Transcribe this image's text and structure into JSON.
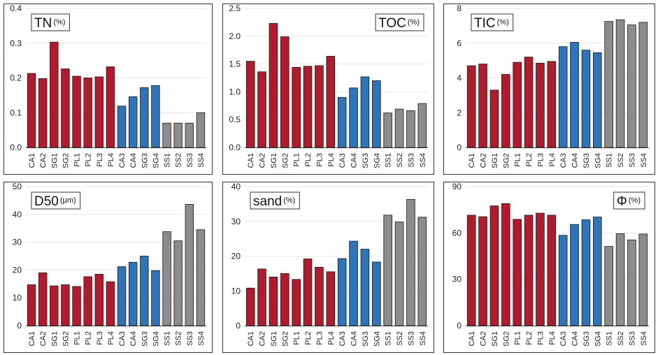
{
  "chart_data": [
    {
      "type": "bar",
      "title": "TN",
      "unit": "(%)",
      "categories": [
        "CA1",
        "CA2",
        "SG1",
        "SG2",
        "PL1",
        "PL2",
        "PL3",
        "PL4",
        "CA3",
        "CA4",
        "SG3",
        "SG4",
        "SS1",
        "SS2",
        "SS3",
        "SS4"
      ],
      "values": [
        0.213,
        0.198,
        0.303,
        0.226,
        0.205,
        0.2,
        0.203,
        0.232,
        0.119,
        0.146,
        0.172,
        0.178,
        0.07,
        0.07,
        0.07,
        0.1
      ],
      "ylim": [
        0,
        0.4
      ],
      "yticks": [
        "0.0",
        "0.1",
        "0.2",
        "0.3",
        "0.4"
      ],
      "title_position": "top-left"
    },
    {
      "type": "bar",
      "title": "TOC",
      "unit": "(%)",
      "categories": [
        "CA1",
        "CA2",
        "SG1",
        "SG2",
        "PL1",
        "PL2",
        "PL3",
        "PL4",
        "CA3",
        "CA4",
        "SG3",
        "SG4",
        "SS1",
        "SS2",
        "SS3",
        "SS4"
      ],
      "values": [
        1.55,
        1.36,
        2.23,
        1.99,
        1.44,
        1.46,
        1.47,
        1.64,
        0.9,
        1.07,
        1.27,
        1.2,
        0.62,
        0.69,
        0.66,
        0.79
      ],
      "ylim": [
        0,
        2.5
      ],
      "yticks": [
        "0.0",
        "0.5",
        "1.0",
        "1.5",
        "2.0",
        "2.5"
      ],
      "title_position": "top-right"
    },
    {
      "type": "bar",
      "title": "TIC",
      "unit": "(%)",
      "categories": [
        "CA1",
        "CA2",
        "SG1",
        "SG2",
        "PL1",
        "PL2",
        "PL3",
        "PL4",
        "CA3",
        "CA4",
        "SG3",
        "SG4",
        "SS1",
        "SS2",
        "SS3",
        "SS4"
      ],
      "values": [
        4.7,
        4.8,
        3.3,
        4.2,
        4.9,
        5.2,
        4.85,
        4.95,
        5.8,
        6.05,
        5.6,
        5.45,
        7.25,
        7.35,
        7.05,
        7.2
      ],
      "ylim": [
        0,
        8
      ],
      "yticks": [
        "0",
        "2",
        "4",
        "6",
        "8"
      ],
      "title_position": "top-left"
    },
    {
      "type": "bar",
      "title": "D50",
      "unit": "(μm)",
      "categories": [
        "CA1",
        "CA2",
        "SG1",
        "SG2",
        "PL1",
        "PL2",
        "PL3",
        "PL4",
        "CA3",
        "CA4",
        "SG3",
        "SG4",
        "SS1",
        "SS2",
        "SS3",
        "SS4"
      ],
      "values": [
        14.7,
        19.0,
        14.3,
        14.7,
        14.1,
        17.6,
        18.5,
        15.8,
        21.2,
        22.8,
        25.0,
        19.8,
        33.8,
        30.5,
        43.6,
        34.5
      ],
      "ylim": [
        0,
        50
      ],
      "yticks": [
        "0",
        "10",
        "20",
        "30",
        "40",
        "50"
      ],
      "title_position": "top-left"
    },
    {
      "type": "bar",
      "title": "sand",
      "unit": "(%)",
      "categories": [
        "CA1",
        "CA2",
        "SG1",
        "SG2",
        "PL1",
        "PL2",
        "PL3",
        "PL4",
        "CA3",
        "CA4",
        "SG3",
        "SG4",
        "SS1",
        "SS2",
        "SS3",
        "SS4"
      ],
      "values": [
        10.8,
        16.3,
        14.0,
        15.0,
        13.3,
        19.2,
        16.8,
        15.5,
        19.3,
        24.3,
        22.0,
        18.3,
        31.8,
        29.8,
        36.3,
        31.2
      ],
      "ylim": [
        0,
        40
      ],
      "yticks": [
        "0",
        "10",
        "20",
        "30",
        "40"
      ],
      "title_position": "top-left"
    },
    {
      "type": "bar",
      "title": "Φ",
      "unit": "(%)",
      "categories": [
        "CA1",
        "CA2",
        "SG1",
        "SG2",
        "PL1",
        "PL2",
        "PL3",
        "PL4",
        "CA3",
        "CA4",
        "SG3",
        "SG4",
        "SS1",
        "SS2",
        "SS3",
        "SS4"
      ],
      "values": [
        71.5,
        70.5,
        77.5,
        79.0,
        68.8,
        71.5,
        72.8,
        71.5,
        58.5,
        65.5,
        68.5,
        70.3,
        51.3,
        59.5,
        55.5,
        59.3
      ],
      "ylim": [
        0,
        90
      ],
      "yticks": [
        "0",
        "30",
        "60",
        "90"
      ],
      "title_position": "top-right"
    }
  ],
  "group_colors": [
    "#b01c2e",
    "#b01c2e",
    "#b01c2e",
    "#b01c2e",
    "#b01c2e",
    "#b01c2e",
    "#b01c2e",
    "#b01c2e",
    "#2f73b8",
    "#2f73b8",
    "#2f73b8",
    "#2f73b8",
    "#8c8c8c",
    "#8c8c8c",
    "#8c8c8c",
    "#8c8c8c"
  ]
}
